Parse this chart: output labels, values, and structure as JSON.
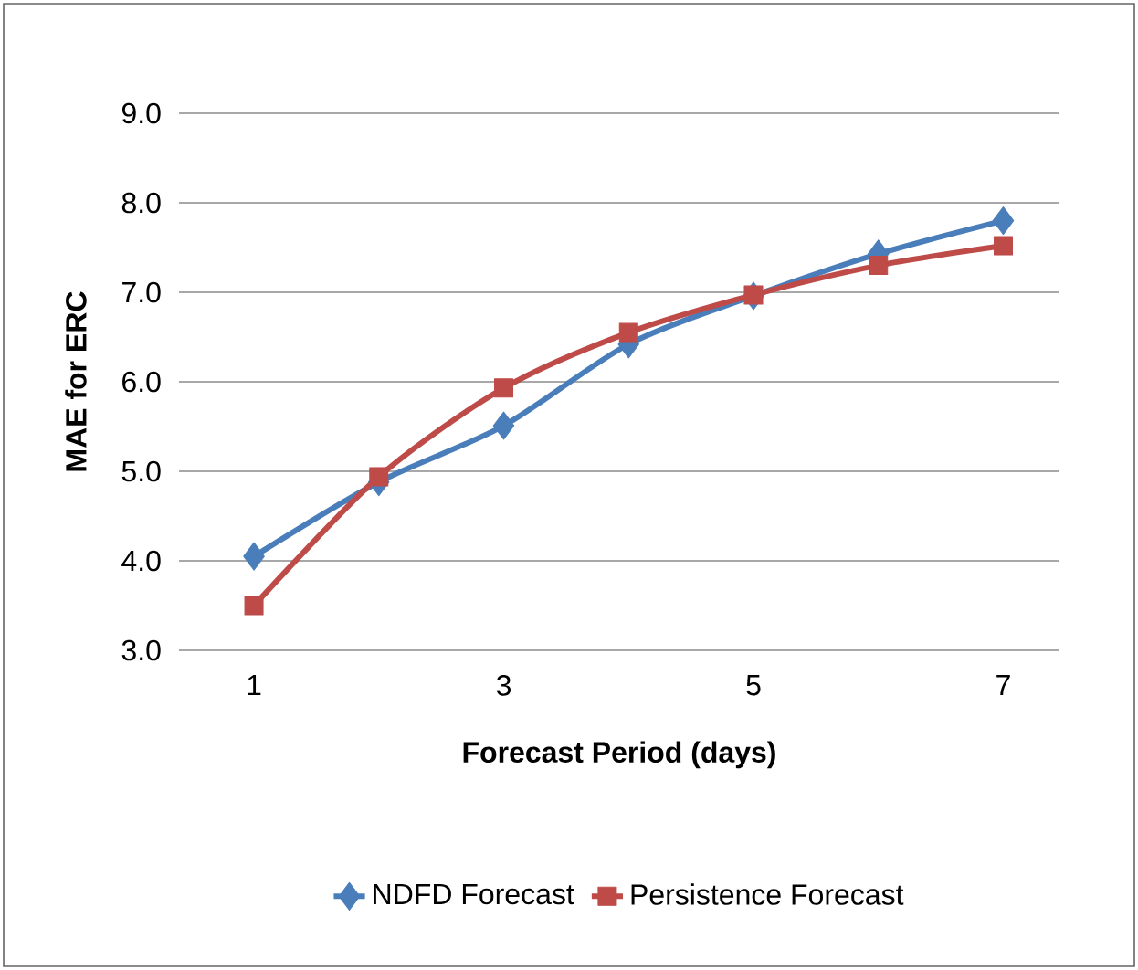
{
  "chart_data": {
    "type": "line",
    "xlabel": "Forecast Period (days)",
    "ylabel": "MAE for ERC",
    "x": [
      1,
      2,
      3,
      4,
      5,
      6,
      7
    ],
    "series": [
      {
        "name": "NDFD Forecast",
        "color": "#4a7ebb",
        "marker": "diamond",
        "values": [
          4.05,
          4.88,
          5.51,
          6.42,
          6.96,
          7.43,
          7.8
        ]
      },
      {
        "name": "Persistence Forecast",
        "color": "#be4b48",
        "marker": "square",
        "values": [
          3.5,
          4.94,
          5.93,
          6.55,
          6.97,
          7.3,
          7.52
        ]
      }
    ],
    "xlim": [
      0.4,
      7.45
    ],
    "ylim": [
      3.0,
      9.0
    ],
    "xticks": [
      1,
      3,
      5,
      7
    ],
    "yticks": [
      {
        "value": 3,
        "label": "3.0"
      },
      {
        "value": 4,
        "label": "4.0"
      },
      {
        "value": 5,
        "label": "5.0"
      },
      {
        "value": 6,
        "label": "6.0"
      },
      {
        "value": 7,
        "label": "7.0"
      },
      {
        "value": 8,
        "label": "8.0"
      },
      {
        "value": 9,
        "label": "9.0"
      }
    ],
    "grid": "y",
    "legend": "bottom",
    "line_style": "solid"
  }
}
